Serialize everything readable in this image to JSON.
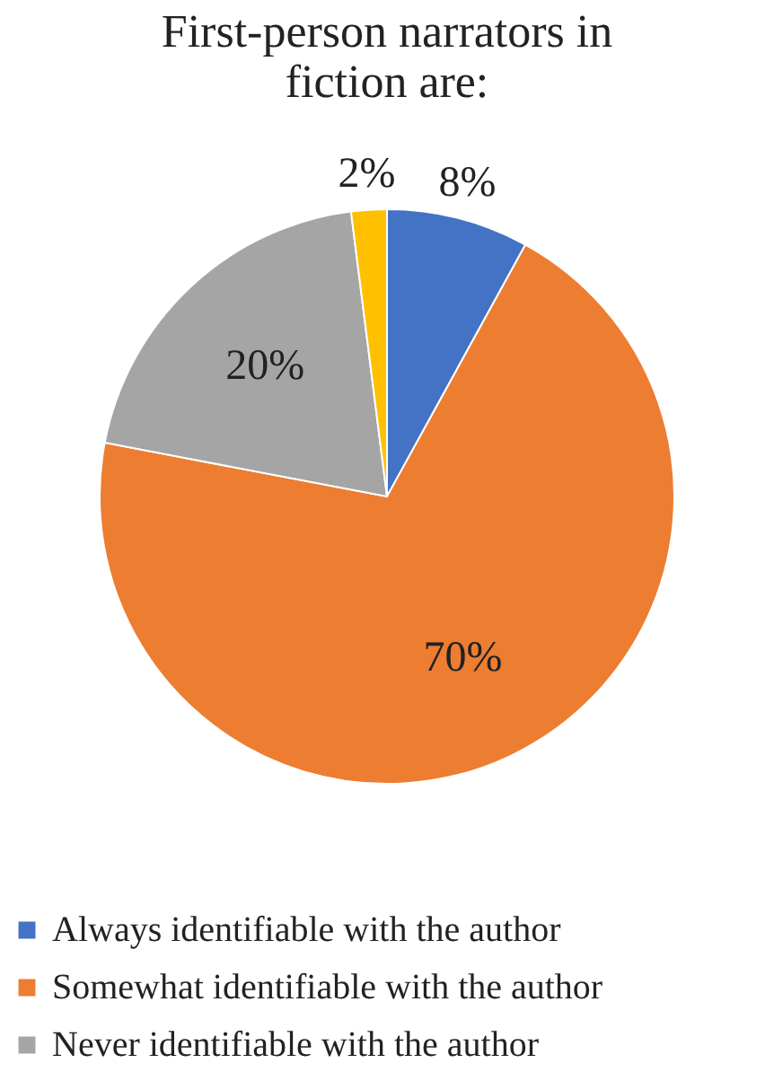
{
  "chart_data": {
    "type": "pie",
    "title": "First-person narrators in fiction are:",
    "categories": [
      "Always identifiable with the author",
      "Somewhat identifiable with the author",
      "Never identifiable with the author",
      null
    ],
    "values": [
      8,
      70,
      20,
      2
    ],
    "colors": [
      "#4472c4",
      "#ed7d31",
      "#a5a5a5",
      "#ffc000"
    ],
    "value_labels": [
      "8%",
      "70%",
      "20%",
      "2%"
    ],
    "legend": "bottom"
  }
}
